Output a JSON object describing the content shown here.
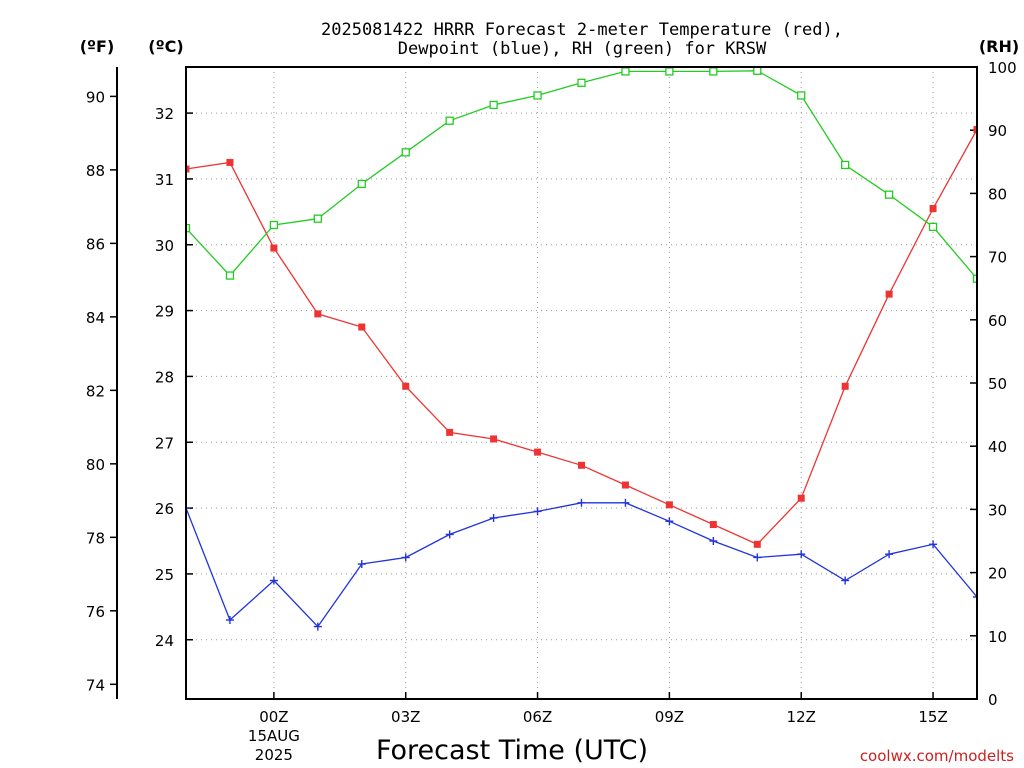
{
  "chart_data": {
    "type": "line",
    "title_lines": [
      "2025081422 HRRR Forecast 2-meter Temperature (red),",
      "Dewpoint (blue), RH (green) for KRSW"
    ],
    "unit_labels": {
      "fahrenheit": "(ºF)",
      "celsius": "(ºC)",
      "rh": "(RH)"
    },
    "xlabel": "Forecast Time (UTC)",
    "credit": "coolwx.com/modelts",
    "x_hours": [
      22,
      23,
      24,
      25,
      26,
      27,
      28,
      29,
      30,
      31,
      32,
      33,
      34,
      35,
      36,
      37,
      38,
      39,
      40
    ],
    "xlim": [
      22,
      40
    ],
    "x_ticks": [
      {
        "hour": 24,
        "lines": [
          "00Z",
          "15AUG",
          "2025"
        ]
      },
      {
        "hour": 27,
        "lines": [
          "03Z"
        ]
      },
      {
        "hour": 30,
        "lines": [
          "06Z"
        ]
      },
      {
        "hour": 33,
        "lines": [
          "09Z"
        ]
      },
      {
        "hour": 36,
        "lines": [
          "12Z"
        ]
      },
      {
        "hour": 39,
        "lines": [
          "15Z"
        ]
      }
    ],
    "axes": {
      "fahrenheit": {
        "range": [
          73.6,
          90.8
        ],
        "ticks": [
          74,
          76,
          78,
          80,
          82,
          84,
          86,
          88,
          90
        ]
      },
      "celsius": {
        "range": [
          23.1,
          32.7
        ],
        "ticks": [
          24,
          25,
          26,
          27,
          28,
          29,
          30,
          31,
          32
        ]
      },
      "rh": {
        "range": [
          0,
          100
        ],
        "ticks": [
          0,
          10,
          20,
          30,
          40,
          50,
          60,
          70,
          80,
          90,
          100
        ]
      }
    },
    "grid": true,
    "series": [
      {
        "name": "Temperature",
        "axis": "celsius",
        "color": "#ee3333",
        "marker": "filled-square",
        "values": [
          31.15,
          31.25,
          29.95,
          28.95,
          28.75,
          27.85,
          27.15,
          27.05,
          26.85,
          26.65,
          26.35,
          26.05,
          25.75,
          25.45,
          26.15,
          27.85,
          29.25,
          30.55,
          31.75
        ]
      },
      {
        "name": "Dewpoint",
        "axis": "celsius",
        "color": "#2233dd",
        "marker": "plus",
        "values": [
          26.0,
          24.3,
          24.9,
          24.2,
          25.15,
          25.25,
          25.6,
          25.85,
          25.95,
          26.08,
          26.08,
          25.8,
          25.5,
          25.25,
          25.3,
          24.9,
          25.3,
          25.45,
          24.65
        ]
      },
      {
        "name": "RH",
        "axis": "rh",
        "color": "#22cc22",
        "marker": "open-square",
        "values": [
          74.5,
          67,
          75,
          76,
          81.5,
          86.5,
          91.5,
          94,
          95.5,
          97.5,
          99.3,
          99.3,
          99.3,
          99.4,
          95.5,
          84.5,
          79.8,
          74.7,
          66.5
        ]
      }
    ]
  }
}
